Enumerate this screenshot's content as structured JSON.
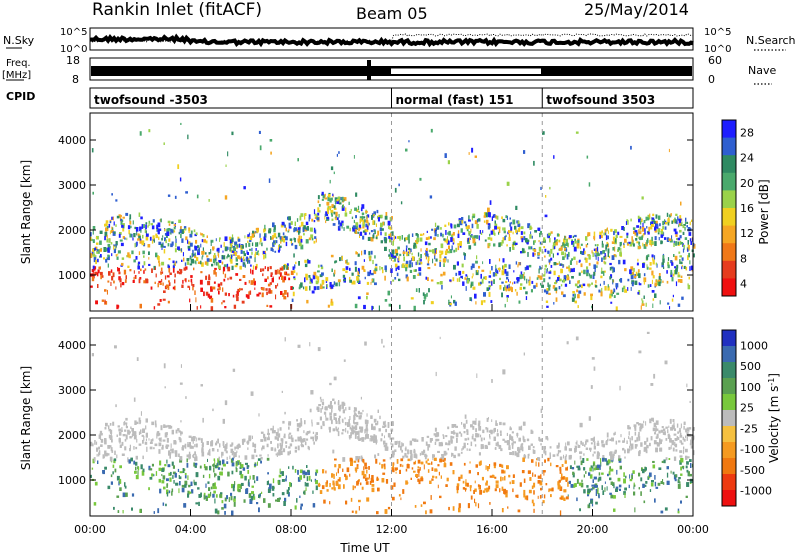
{
  "header": {
    "station": "Rankin Inlet (fitACF)",
    "beam": "Beam 05",
    "date": "25/May/2014"
  },
  "summary": {
    "nsky": {
      "label": "N.Sky",
      "ticks": [
        "10^5",
        "10^0"
      ]
    },
    "nsearch": {
      "label": "N.Search",
      "ticks": [
        "10^5",
        "10^0"
      ]
    },
    "freq": {
      "label_top": "Freq.",
      "label_unit": "[MHz]",
      "ticks": [
        "18",
        "8"
      ]
    },
    "nave": {
      "label": "Nave",
      "ticks": [
        "60",
        "0"
      ]
    },
    "cpid": {
      "label": "CPID",
      "segments": [
        {
          "start_hour": 0,
          "end_hour": 12,
          "label": "twofsound -3503"
        },
        {
          "start_hour": 12,
          "end_hour": 18,
          "label": "normal (fast) 151"
        },
        {
          "start_hour": 18,
          "end_hour": 24,
          "label": "twofsound 3503"
        }
      ]
    }
  },
  "chart_data": [
    {
      "type": "heatmap",
      "ylabel": "Slant Range [km]",
      "ylim": [
        200,
        4600
      ],
      "yticks": [
        "1000",
        "2000",
        "3000",
        "4000"
      ],
      "xlim": [
        0,
        24
      ],
      "colorbar": {
        "title": "Power [dB]",
        "ticks": [
          "4",
          "8",
          "12",
          "16",
          "20",
          "24",
          "28"
        ],
        "colors": [
          "#1e1eff",
          "#2f5fd0",
          "#2f8a62",
          "#4aa96c",
          "#9ad24a",
          "#f0d020",
          "#f5a623",
          "#f07818",
          "#e63c1e",
          "#f01010"
        ]
      }
    },
    {
      "type": "heatmap",
      "ylabel": "Slant Range [km]",
      "ylim": [
        200,
        4600
      ],
      "yticks": [
        "1000",
        "2000",
        "3000",
        "4000"
      ],
      "xlabel": "Time UT",
      "xticks": [
        "00:00",
        "04:00",
        "08:00",
        "12:00",
        "16:00",
        "20:00",
        "00:00"
      ],
      "xlim": [
        0,
        24
      ],
      "colorbar": {
        "title": "Velocity [m s-1]",
        "ticks": [
          "1000",
          "500",
          "100",
          "25",
          "-25",
          "-100",
          "-500",
          "-1000"
        ],
        "colors": [
          "#2030c0",
          "#3a6ab0",
          "#3a8a6a",
          "#5aa050",
          "#78c83c",
          "#bcbcbc",
          "#f5c040",
          "#f59a20",
          "#f07810",
          "#ee3a10",
          "#ee1010"
        ]
      }
    }
  ]
}
